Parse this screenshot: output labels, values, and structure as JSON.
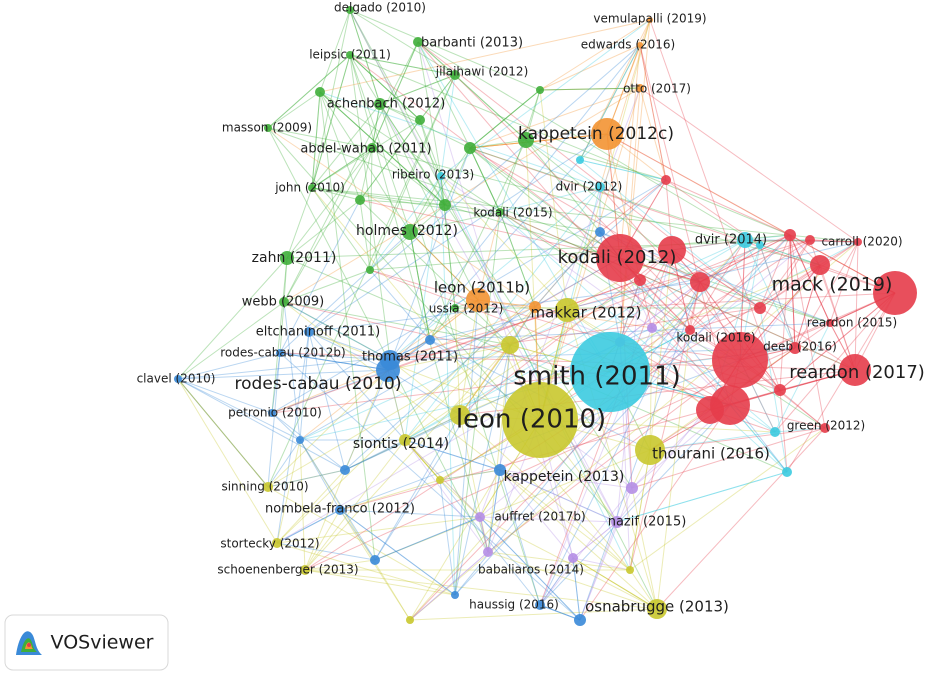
{
  "nodes": [
    {
      "label": "delgado (2010)"
    },
    {
      "label": "barbanti (2013)"
    },
    {
      "label": "leipsic (2011)"
    },
    {
      "label": "vemulapalli (2019)"
    },
    {
      "label": "edwards (2016)"
    },
    {
      "label": "jilaihawi (2012)"
    },
    {
      "label": "otto (2017)"
    },
    {
      "label": "achenbach (2012)"
    },
    {
      "label": "masson (2009)"
    },
    {
      "label": "kappetein (2012c)"
    },
    {
      "label": "abdel-wahab (2011)"
    },
    {
      "label": "ribeiro (2013)"
    },
    {
      "label": "dvir (2012)"
    },
    {
      "label": "john (2010)"
    },
    {
      "label": "kodali (2015)"
    },
    {
      "label": "holmes (2012)"
    },
    {
      "label": "kodali (2012)"
    },
    {
      "label": "dvir (2014)"
    },
    {
      "label": "carroll (2020)"
    },
    {
      "label": "zahn (2011)"
    },
    {
      "label": "leon (2011b)"
    },
    {
      "label": "mack (2019)"
    },
    {
      "label": "webb (2009)"
    },
    {
      "label": "ussia (2012)"
    },
    {
      "label": "makkar (2012)"
    },
    {
      "label": "reardon (2015)"
    },
    {
      "label": "eltchaninoff (2011)"
    },
    {
      "label": "kodali (2016)"
    },
    {
      "label": "deeb (2016)"
    },
    {
      "label": "rodes-cabau (2012b)"
    },
    {
      "label": "thomas (2011)"
    },
    {
      "label": "smith (2011)"
    },
    {
      "label": "reardon (2017)"
    },
    {
      "label": "clavel (2010)"
    },
    {
      "label": "rodes-cabau (2010)"
    },
    {
      "label": "petronio (2010)"
    },
    {
      "label": "leon (2010)"
    },
    {
      "label": "green (2012)"
    },
    {
      "label": "siontis (2014)"
    },
    {
      "label": "thourani (2016)"
    },
    {
      "label": "kappetein (2013)"
    },
    {
      "label": "sinning (2010)"
    },
    {
      "label": "nombela-franco (2012)"
    },
    {
      "label": "auffret (2017b)"
    },
    {
      "label": "nazif (2015)"
    },
    {
      "label": "stortecky (2012)"
    },
    {
      "label": "schoenenberger (2013)"
    },
    {
      "label": "babaliaros (2014)"
    },
    {
      "label": "haussig (2016)"
    },
    {
      "label": "osnabrugge (2013)"
    }
  ],
  "logo": {
    "text": "VOSviewer"
  }
}
